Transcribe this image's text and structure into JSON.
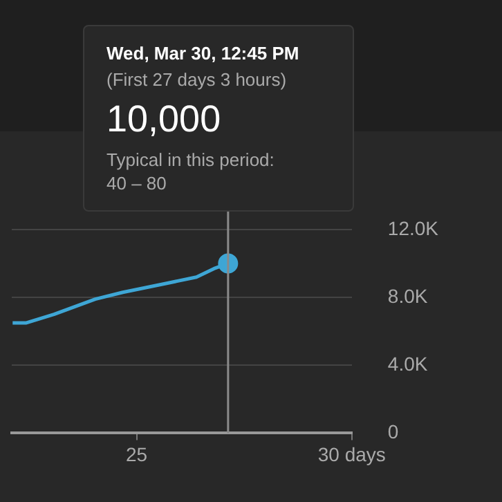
{
  "chart_data": {
    "type": "line",
    "x": [
      22.12,
      22.44,
      23.08,
      24.04,
      24.68,
      25.64,
      26.39,
      26.8,
      27.125
    ],
    "series": [
      {
        "color": "#3ea6d5",
        "values": [
          6500,
          6500,
          7000,
          7900,
          8300,
          8800,
          9200,
          9700,
          10000
        ]
      }
    ],
    "xlim": [
      22.1,
      30
    ],
    "xticks": [
      25,
      {
        "value": 30,
        "label": "30 days"
      }
    ],
    "ylim": [
      0,
      12000
    ],
    "yticks": [
      {
        "value": 0,
        "label": "0"
      },
      {
        "value": 4000,
        "label": "4.0K"
      },
      {
        "value": 8000,
        "label": "8.0K"
      },
      {
        "value": 12000,
        "label": "12.0K"
      }
    ],
    "grid": "y",
    "legend": false,
    "ref_lines": [
      {
        "axis": "x",
        "value": 27.125,
        "color": "#8a8a8a"
      }
    ],
    "annotations": [
      "Wed, Mar 30, 12:45 PM",
      "(First 27 days 3 hours)",
      "10,000",
      "Typical in this period:",
      "40 – 80"
    ]
  }
}
